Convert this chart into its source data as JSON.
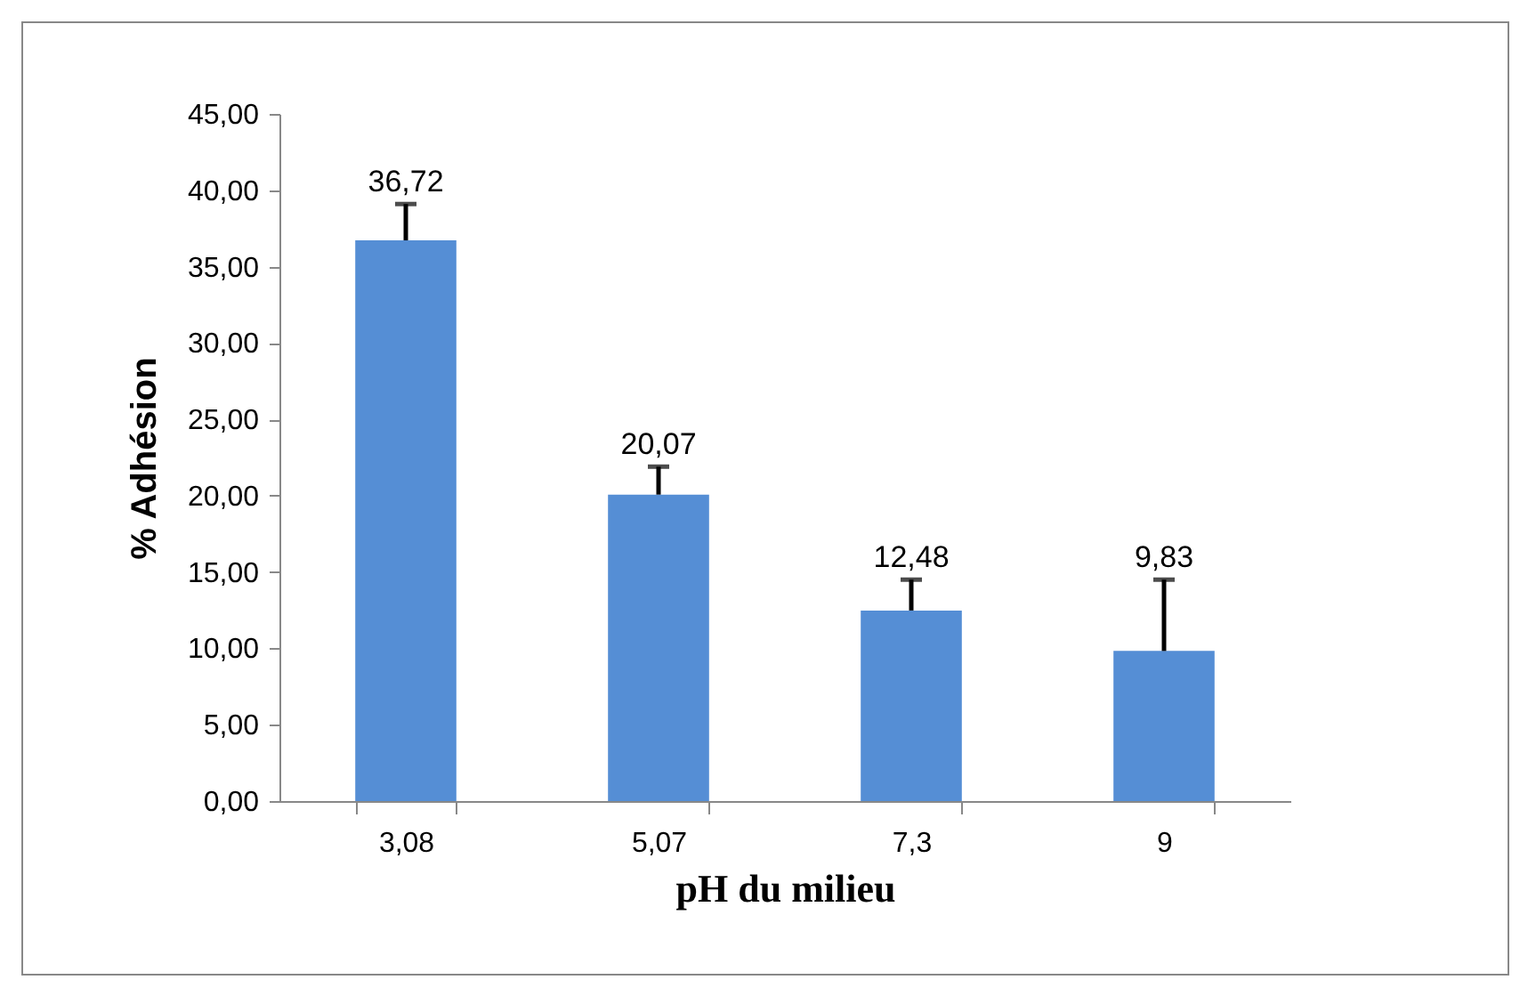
{
  "chart_data": {
    "type": "bar",
    "xlabel": "pH du milieu",
    "ylabel": "% Adhésion",
    "categories": [
      "3,08",
      "5,07",
      "7,3",
      "9"
    ],
    "values": [
      36.72,
      20.07,
      12.48,
      9.83
    ],
    "value_labels": [
      "36,72",
      "20,07",
      "12,48",
      "9,83"
    ],
    "errors": [
      [
        36.72,
        39.1
      ],
      [
        20.07,
        21.9
      ],
      [
        12.48,
        14.5
      ],
      [
        9.83,
        14.5
      ]
    ],
    "color": "#558ed5",
    "ylim": [
      0,
      45
    ],
    "yticks": [
      {
        "value": 0,
        "label": "0,00"
      },
      {
        "value": 5,
        "label": "5,00"
      },
      {
        "value": 10,
        "label": "10,00"
      },
      {
        "value": 15,
        "label": "15,00"
      },
      {
        "value": 20,
        "label": "20,00"
      },
      {
        "value": 25,
        "label": "25,00"
      },
      {
        "value": 30,
        "label": "30,00"
      },
      {
        "value": 35,
        "label": "35,00"
      },
      {
        "value": 40,
        "label": "40,00"
      },
      {
        "value": 45,
        "label": "45,00"
      }
    ],
    "grid": false
  }
}
